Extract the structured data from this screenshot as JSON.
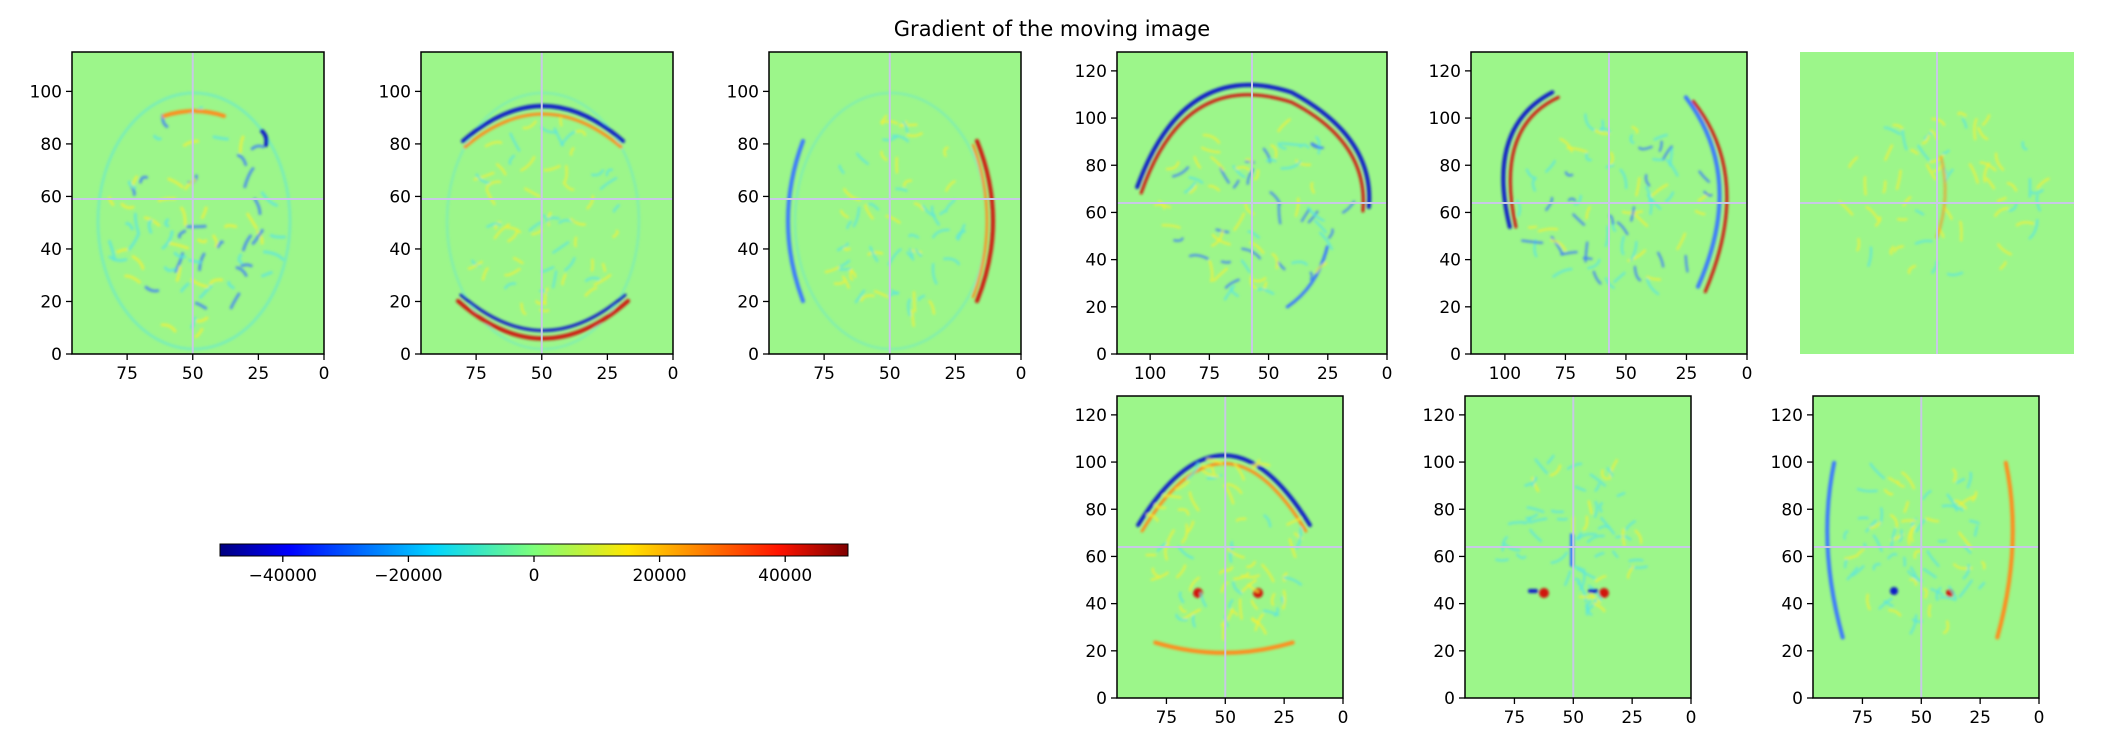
{
  "title": "Gradient of the moving image",
  "chart_data": {
    "type": "heatmap",
    "colormap": "jet",
    "background_value_color": "#9cf68a",
    "panels": [
      {
        "id": "axial-1",
        "xticks": [
          "75",
          "50",
          "25",
          "0"
        ],
        "yticks": [
          "0",
          "20",
          "40",
          "60",
          "80",
          "100"
        ],
        "xlim": [
          96,
          0
        ],
        "ylim": [
          0,
          115
        ],
        "crosshair": {
          "x": 50,
          "y": 59
        },
        "content": "axial-mixed"
      },
      {
        "id": "axial-2",
        "xticks": [
          "75",
          "50",
          "25",
          "0"
        ],
        "yticks": [
          "0",
          "20",
          "40",
          "60",
          "80",
          "100"
        ],
        "xlim": [
          96,
          0
        ],
        "ylim": [
          0,
          115
        ],
        "crosshair": {
          "x": 50,
          "y": 59
        },
        "content": "axial-vertical-gradient"
      },
      {
        "id": "axial-3",
        "xticks": [
          "75",
          "50",
          "25",
          "0"
        ],
        "yticks": [
          "0",
          "20",
          "40",
          "60",
          "80",
          "100"
        ],
        "xlim": [
          96,
          0
        ],
        "ylim": [
          0,
          115
        ],
        "crosshair": {
          "x": 50,
          "y": 59
        },
        "content": "axial-horizontal-gradient"
      },
      {
        "id": "sagittal-1",
        "xticks": [
          "100",
          "75",
          "50",
          "25",
          "0"
        ],
        "yticks": [
          "0",
          "20",
          "40",
          "60",
          "80",
          "100",
          "120"
        ],
        "xlim": [
          114,
          0
        ],
        "ylim": [
          0,
          128
        ],
        "crosshair": {
          "x": 57,
          "y": 64
        },
        "content": "sagittal-vertical-gradient"
      },
      {
        "id": "sagittal-2",
        "xticks": [
          "100",
          "75",
          "50",
          "25",
          "0"
        ],
        "yticks": [
          "0",
          "20",
          "40",
          "60",
          "80",
          "100",
          "120"
        ],
        "xlim": [
          114,
          0
        ],
        "ylim": [
          0,
          128
        ],
        "crosshair": {
          "x": 57,
          "y": 64
        },
        "content": "sagittal-horizontal-gradient"
      },
      {
        "id": "sagittal-3",
        "xticks": [],
        "yticks": [],
        "xlim": [
          114,
          0
        ],
        "ylim": [
          0,
          128
        ],
        "crosshair": {
          "x": 57,
          "y": 64
        },
        "content": "sagittal-faint"
      },
      {
        "id": "coronal-1",
        "xticks": [
          "75",
          "50",
          "25",
          "0"
        ],
        "yticks": [
          "0",
          "20",
          "40",
          "60",
          "80",
          "100",
          "120"
        ],
        "xlim": [
          96,
          0
        ],
        "ylim": [
          0,
          128
        ],
        "crosshair": {
          "x": 50,
          "y": 64
        },
        "content": "coronal-vertical-gradient"
      },
      {
        "id": "coronal-2",
        "xticks": [
          "75",
          "50",
          "25",
          "0"
        ],
        "yticks": [
          "0",
          "20",
          "40",
          "60",
          "80",
          "100",
          "120"
        ],
        "xlim": [
          96,
          0
        ],
        "ylim": [
          0,
          128
        ],
        "crosshair": {
          "x": 50,
          "y": 64
        },
        "content": "coronal-depth-gradient"
      },
      {
        "id": "coronal-3",
        "xticks": [
          "75",
          "50",
          "25",
          "0"
        ],
        "yticks": [
          "0",
          "20",
          "40",
          "60",
          "80",
          "100",
          "120"
        ],
        "xlim": [
          96,
          0
        ],
        "ylim": [
          0,
          128
        ],
        "crosshair": {
          "x": 50,
          "y": 64
        },
        "content": "coronal-horizontal-gradient"
      }
    ],
    "colorbar": {
      "range": [
        -50000,
        50000
      ],
      "ticks": [
        -40000,
        -20000,
        0,
        20000,
        40000
      ],
      "tick_labels": [
        "−40000",
        "−20000",
        "0",
        "20000",
        "40000"
      ],
      "orientation": "horizontal"
    },
    "colors": {
      "background": "#9cf68a",
      "crosshair": "#c8c8e6",
      "positive_strong": "#d0150e",
      "positive_mid": "#ff8c1a",
      "positive_weak": "#f2f03a",
      "negative_weak": "#5ce6e0",
      "negative_mid": "#3a78ff",
      "negative_strong": "#0a1ec8"
    }
  }
}
